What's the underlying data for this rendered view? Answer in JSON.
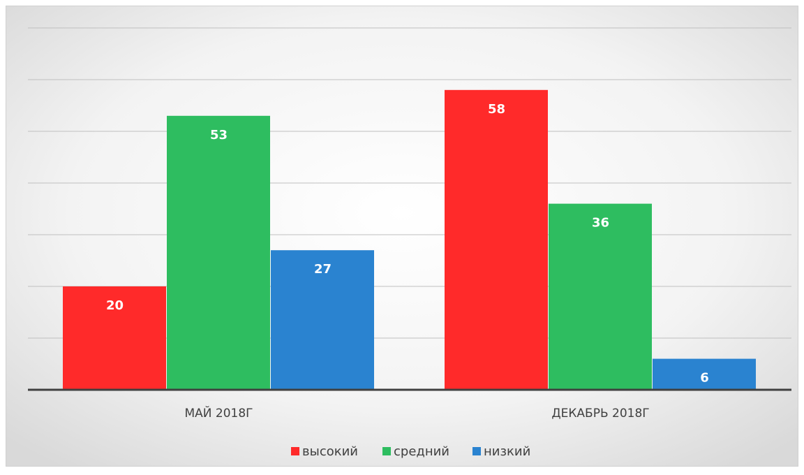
{
  "chart_data": {
    "type": "bar",
    "categories": [
      "МАЙ 2018Г",
      "ДЕКАБРЬ 2018Г"
    ],
    "series": [
      {
        "name": "высокий",
        "color": "#ff2a2a",
        "values": [
          20,
          58
        ]
      },
      {
        "name": "средний",
        "color": "#2ebd60",
        "values": [
          53,
          36
        ]
      },
      {
        "name": "низкий",
        "color": "#2a83d0",
        "values": [
          27,
          6
        ]
      }
    ],
    "ylim": [
      0,
      70
    ],
    "yticks": [
      0,
      10,
      20,
      30,
      40,
      50,
      60,
      70
    ],
    "grid": true,
    "legend": "bottom"
  }
}
